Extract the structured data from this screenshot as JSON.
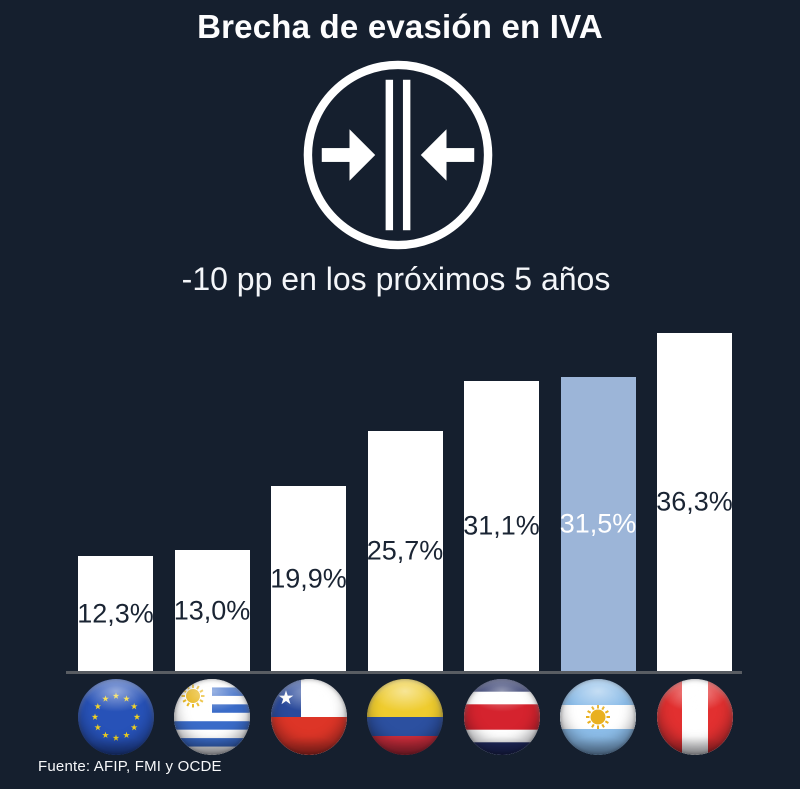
{
  "title": "Brecha de evasión en IVA",
  "icon": {
    "name": "compress-arrows-icon"
  },
  "subtitle": "-10 pp en los próximos 5 años",
  "source": "Fuente: AFIP, FMI y OCDE",
  "colors": {
    "background": "#151f2e",
    "bar_default": "#ffffff",
    "bar_highlight": "#9cb5d8",
    "bar_label_dark": "#1a2433",
    "bar_label_light": "#ffffff",
    "axis_line": "#595d63",
    "text": "#ffffff"
  },
  "chart_data": {
    "type": "bar",
    "title": "Brecha de evasión en IVA",
    "annotation": "-10 pp en los próximos 5 años",
    "categories": [
      "Unión Europea",
      "Uruguay",
      "Chile",
      "Colombia",
      "Costa Rica",
      "Argentina",
      "Perú"
    ],
    "values": [
      12.3,
      13.0,
      19.9,
      25.7,
      31.1,
      31.5,
      36.3
    ],
    "value_labels": [
      "12,3%",
      "13,0%",
      "19,9%",
      "25,7%",
      "31,1%",
      "31,5%",
      "36,3%"
    ],
    "flag_icons": [
      "eu-flag-icon",
      "uruguay-flag-icon",
      "chile-flag-icon",
      "colombia-flag-icon",
      "costa-rica-flag-icon",
      "argentina-flag-icon",
      "peru-flag-icon"
    ],
    "highlight_index": 5,
    "highlight_category": "Argentina",
    "xlabel": "",
    "ylabel": "",
    "ylim": [
      0,
      40
    ],
    "grid": false,
    "legend": false,
    "source": "Fuente: AFIP, FMI y OCDE"
  }
}
